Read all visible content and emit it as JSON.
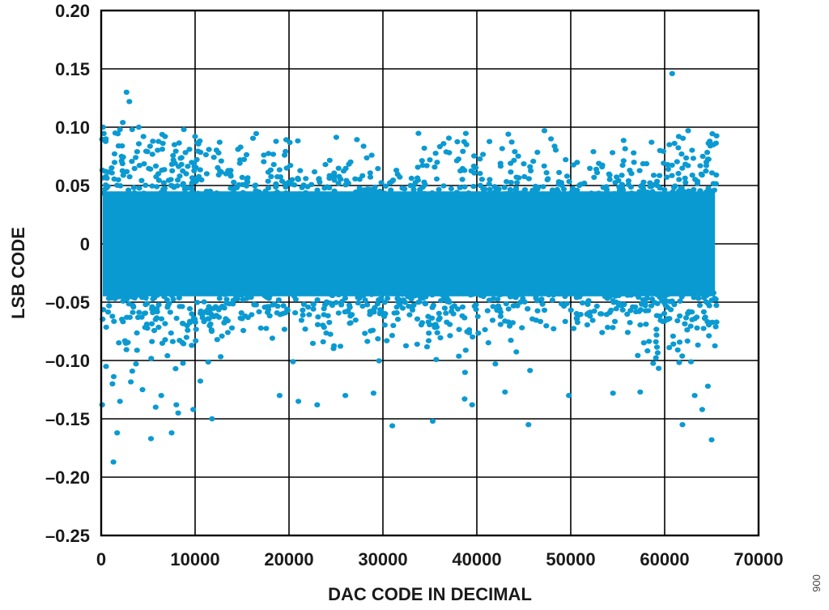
{
  "figure_id": "006",
  "chart_data": {
    "type": "scatter",
    "title": "",
    "xlabel": "DAC CODE IN DECIMAL",
    "ylabel": "LSB CODE",
    "xlim": [
      0,
      70000
    ],
    "ylim": [
      -0.25,
      0.2
    ],
    "xticks": [
      0,
      10000,
      20000,
      30000,
      40000,
      50000,
      60000,
      70000
    ],
    "xtick_labels": [
      "0",
      "10000",
      "20000",
      "30000",
      "40000",
      "50000",
      "60000",
      "70000"
    ],
    "yticks": [
      0.2,
      0.15,
      0.1,
      0.05,
      0,
      -0.05,
      -0.1,
      -0.15,
      -0.2,
      -0.25
    ],
    "ytick_labels": [
      "0.20",
      "0.15",
      "0.10",
      "0.05",
      "0",
      "–0.05",
      "–0.10",
      "–0.15",
      "–0.20",
      "–0.25"
    ],
    "grid": true,
    "point_color": "#0a9ad2",
    "x_range_of_data": [
      0,
      65535
    ],
    "dense_band": [
      -0.045,
      0.045
    ],
    "outliers": [
      {
        "x": 200,
        "y": 0.1
      },
      {
        "x": 500,
        "y": 0.09
      },
      {
        "x": 1500,
        "y": 0.095
      },
      {
        "x": 2000,
        "y": 0.098
      },
      {
        "x": 2700,
        "y": 0.13
      },
      {
        "x": 3000,
        "y": 0.122
      },
      {
        "x": 2300,
        "y": 0.104
      },
      {
        "x": 3300,
        "y": 0.098
      },
      {
        "x": 4000,
        "y": 0.1
      },
      {
        "x": 4500,
        "y": 0.092
      },
      {
        "x": 5500,
        "y": 0.088
      },
      {
        "x": 6800,
        "y": 0.092
      },
      {
        "x": 8800,
        "y": 0.098
      },
      {
        "x": 10000,
        "y": 0.092
      },
      {
        "x": 7800,
        "y": 0.085
      },
      {
        "x": 12500,
        "y": 0.078
      },
      {
        "x": 14800,
        "y": 0.072
      },
      {
        "x": 28800,
        "y": 0.076
      },
      {
        "x": 35000,
        "y": 0.072
      },
      {
        "x": 47200,
        "y": 0.097
      },
      {
        "x": 47900,
        "y": 0.09
      },
      {
        "x": 56700,
        "y": 0.078
      },
      {
        "x": 59500,
        "y": 0.08
      },
      {
        "x": 60800,
        "y": 0.146
      },
      {
        "x": 60500,
        "y": 0.085
      },
      {
        "x": 62500,
        "y": 0.097
      },
      {
        "x": 61500,
        "y": 0.092
      },
      {
        "x": 64800,
        "y": 0.088
      },
      {
        "x": 65200,
        "y": 0.085
      },
      {
        "x": 100,
        "y": -0.138
      },
      {
        "x": 1300,
        "y": -0.187
      },
      {
        "x": 1700,
        "y": -0.162
      },
      {
        "x": 2000,
        "y": -0.135
      },
      {
        "x": 1200,
        "y": -0.12
      },
      {
        "x": 5300,
        "y": -0.167
      },
      {
        "x": 7500,
        "y": -0.162
      },
      {
        "x": 5800,
        "y": -0.14
      },
      {
        "x": 6400,
        "y": -0.13
      },
      {
        "x": 8000,
        "y": -0.138
      },
      {
        "x": 8200,
        "y": -0.145
      },
      {
        "x": 9800,
        "y": -0.142
      },
      {
        "x": 11800,
        "y": -0.15
      },
      {
        "x": 4400,
        "y": -0.125
      },
      {
        "x": 19000,
        "y": -0.13
      },
      {
        "x": 21000,
        "y": -0.135
      },
      {
        "x": 23000,
        "y": -0.138
      },
      {
        "x": 31000,
        "y": -0.156
      },
      {
        "x": 35300,
        "y": -0.152
      },
      {
        "x": 39500,
        "y": -0.138
      },
      {
        "x": 38700,
        "y": -0.133
      },
      {
        "x": 45500,
        "y": -0.155
      },
      {
        "x": 49800,
        "y": -0.13
      },
      {
        "x": 54500,
        "y": -0.128
      },
      {
        "x": 57400,
        "y": -0.127
      },
      {
        "x": 61900,
        "y": -0.155
      },
      {
        "x": 64000,
        "y": -0.142
      },
      {
        "x": 63200,
        "y": -0.13
      },
      {
        "x": 65000,
        "y": -0.168
      },
      {
        "x": 64600,
        "y": -0.122
      },
      {
        "x": 29000,
        "y": -0.128
      },
      {
        "x": 26000,
        "y": -0.13
      },
      {
        "x": 43000,
        "y": -0.127
      }
    ]
  }
}
